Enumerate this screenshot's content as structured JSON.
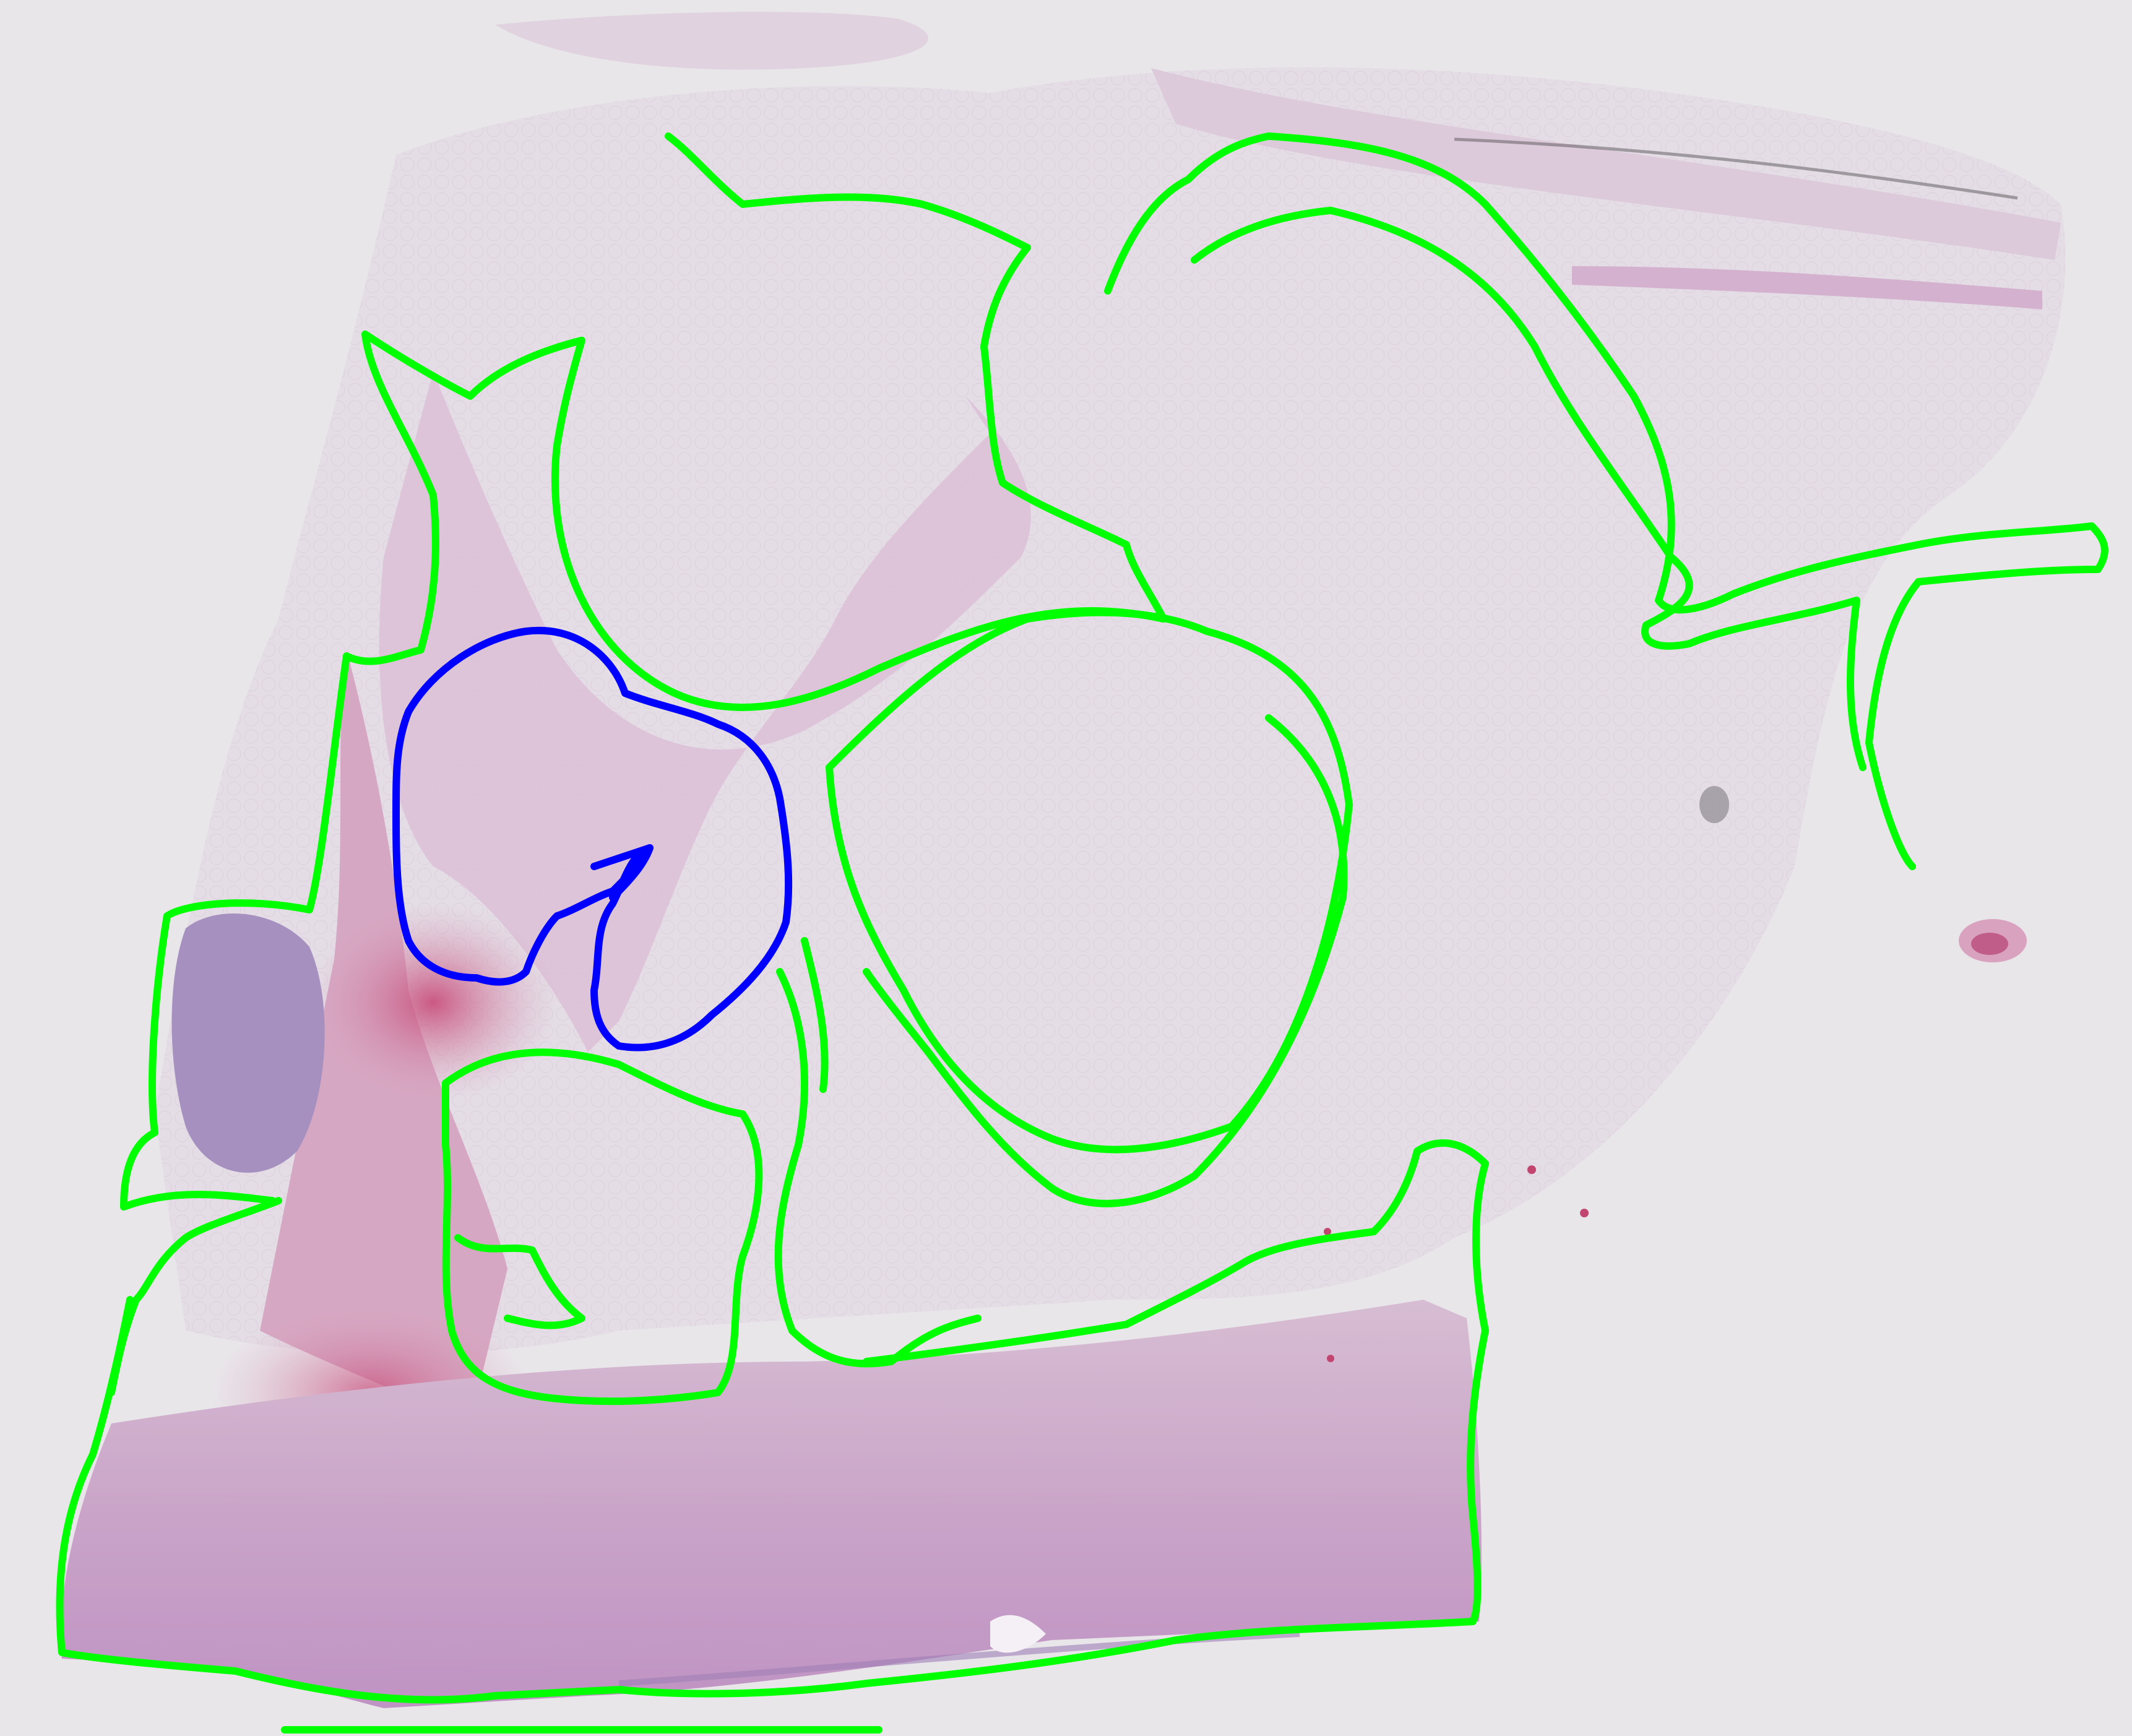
{
  "image": {
    "kind": "whole-slide histology scan (H&E stained tissue) with annotation contours",
    "background_color": "#e9e6ea",
    "tissue": {
      "fat_color": "#e7e2e8",
      "stroma_color": "#d9b9cf",
      "dermis_color": "#c7a0c6",
      "hemorrhage_color": "#c9577f",
      "lymphoid_color": "#a18cbd"
    },
    "annotations": [
      {
        "label": "tissue-region",
        "color": "#00ff00",
        "count": 9
      },
      {
        "label": "selected-region",
        "color": "#0000ff",
        "count": 1
      }
    ]
  }
}
